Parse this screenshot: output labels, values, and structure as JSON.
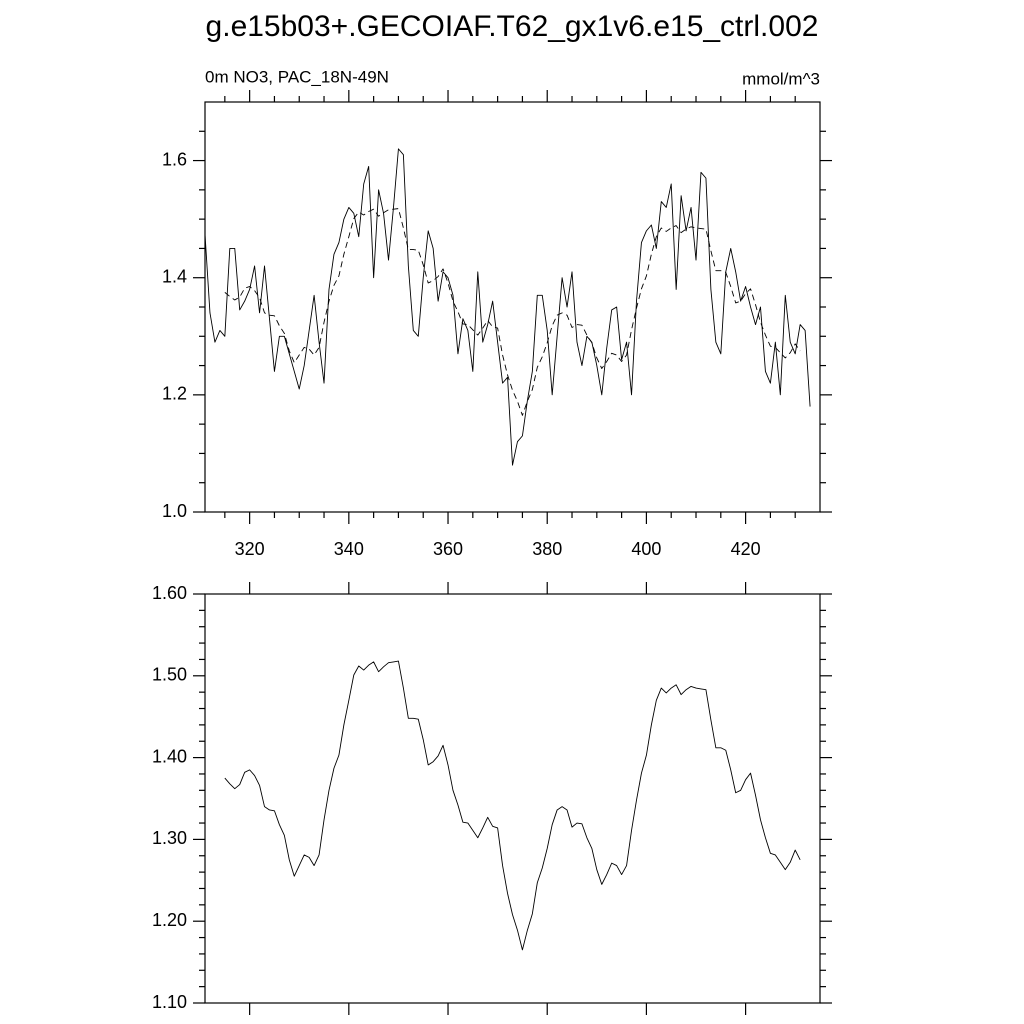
{
  "title": "g.e15b03+.GECOIAF.T62_gx1v6.e15_ctrl.002",
  "chart_data": [
    {
      "type": "line",
      "subtitle": "0m NO3, PAC_18N-49N",
      "units": "mmol/m^3",
      "xlim": [
        311,
        435
      ],
      "xticks": [
        320,
        340,
        360,
        380,
        400,
        420
      ],
      "xtick_labels": true,
      "xminorticks": [
        315,
        325,
        330,
        335,
        345,
        350,
        355,
        365,
        370,
        375,
        385,
        390,
        395,
        405,
        410,
        415,
        425,
        430
      ],
      "ylim": [
        1.0,
        1.7
      ],
      "yticks": [
        {
          "value": 1.0,
          "label": "1.0"
        },
        1.2,
        1.4,
        1.6
      ],
      "yminorticks": [
        1.05,
        1.1,
        1.15,
        1.25,
        1.3,
        1.35,
        1.45,
        1.5,
        1.55,
        1.65
      ],
      "series": [
        {
          "color": "#000000",
          "dashed": false,
          "x": [
            311,
            312,
            313,
            314,
            315,
            316,
            317,
            318,
            319,
            320,
            321,
            322,
            323,
            324,
            325,
            326,
            327,
            328,
            329,
            330,
            331,
            332,
            333,
            334,
            335,
            336,
            337,
            338,
            339,
            340,
            341,
            342,
            343,
            344,
            345,
            346,
            347,
            348,
            349,
            350,
            351,
            352,
            353,
            354,
            355,
            356,
            357,
            358,
            359,
            360,
            361,
            362,
            363,
            364,
            365,
            366,
            367,
            368,
            369,
            370,
            371,
            372,
            373,
            374,
            375,
            376,
            377,
            378,
            379,
            380,
            381,
            382,
            383,
            384,
            385,
            386,
            387,
            388,
            389,
            390,
            391,
            392,
            393,
            394,
            395,
            396,
            397,
            398,
            399,
            400,
            401,
            402,
            403,
            404,
            405,
            406,
            407,
            408,
            409,
            410,
            411,
            412,
            413,
            414,
            415,
            416,
            417,
            418,
            419,
            420,
            421,
            422,
            423,
            424,
            425,
            426,
            427,
            428,
            429,
            430,
            431,
            432,
            433
          ],
          "values": [
            1.474,
            1.34,
            1.29,
            1.31,
            1.3,
            1.45,
            1.45,
            1.345,
            1.36,
            1.38,
            1.42,
            1.34,
            1.42,
            1.33,
            1.24,
            1.3,
            1.3,
            1.27,
            1.24,
            1.21,
            1.25,
            1.31,
            1.37,
            1.29,
            1.22,
            1.38,
            1.44,
            1.46,
            1.5,
            1.52,
            1.51,
            1.47,
            1.56,
            1.59,
            1.4,
            1.55,
            1.51,
            1.43,
            1.52,
            1.62,
            1.61,
            1.42,
            1.31,
            1.3,
            1.4,
            1.48,
            1.45,
            1.36,
            1.41,
            1.4,
            1.37,
            1.27,
            1.33,
            1.31,
            1.24,
            1.41,
            1.29,
            1.32,
            1.36,
            1.29,
            1.22,
            1.23,
            1.08,
            1.12,
            1.13,
            1.19,
            1.24,
            1.37,
            1.37,
            1.31,
            1.2,
            1.3,
            1.4,
            1.35,
            1.41,
            1.29,
            1.25,
            1.3,
            1.29,
            1.25,
            1.2,
            1.28,
            1.345,
            1.35,
            1.26,
            1.29,
            1.2,
            1.36,
            1.46,
            1.48,
            1.49,
            1.45,
            1.53,
            1.52,
            1.56,
            1.38,
            1.54,
            1.48,
            1.52,
            1.43,
            1.58,
            1.57,
            1.38,
            1.29,
            1.27,
            1.41,
            1.45,
            1.41,
            1.36,
            1.385,
            1.35,
            1.32,
            1.35,
            1.24,
            1.22,
            1.29,
            1.2,
            1.37,
            1.29,
            1.27,
            1.32,
            1.31,
            1.18
          ]
        },
        {
          "color": "#000000",
          "dashed": true,
          "x": [
            315,
            316,
            317,
            318,
            319,
            320,
            321,
            322,
            323,
            324,
            325,
            326,
            327,
            328,
            329,
            330,
            331,
            332,
            333,
            334,
            335,
            336,
            337,
            338,
            339,
            340,
            341,
            342,
            343,
            344,
            345,
            346,
            347,
            348,
            349,
            350,
            351,
            352,
            353,
            354,
            355,
            356,
            357,
            358,
            359,
            360,
            361,
            362,
            363,
            364,
            365,
            366,
            367,
            368,
            369,
            370,
            371,
            372,
            373,
            374,
            375,
            376,
            377,
            378,
            379,
            380,
            381,
            382,
            383,
            384,
            385,
            386,
            387,
            388,
            389,
            390,
            391,
            392,
            393,
            394,
            395,
            396,
            397,
            398,
            399,
            400,
            401,
            402,
            403,
            404,
            405,
            406,
            407,
            408,
            409,
            410,
            411,
            412,
            413,
            414,
            415,
            416,
            417,
            418,
            419,
            420,
            421,
            422,
            423,
            424,
            425,
            426,
            427,
            428,
            429,
            430,
            431
          ],
          "values": [
            1.375,
            1.368,
            1.362,
            1.367,
            1.382,
            1.385,
            1.378,
            1.366,
            1.34,
            1.336,
            1.335,
            1.318,
            1.305,
            1.275,
            1.255,
            1.268,
            1.281,
            1.278,
            1.268,
            1.281,
            1.324,
            1.36,
            1.387,
            1.403,
            1.44,
            1.47,
            1.501,
            1.512,
            1.507,
            1.513,
            1.517,
            1.505,
            1.511,
            1.516,
            1.517,
            1.518,
            1.485,
            1.448,
            1.448,
            1.447,
            1.422,
            1.391,
            1.395,
            1.402,
            1.415,
            1.391,
            1.36,
            1.342,
            1.321,
            1.32,
            1.311,
            1.302,
            1.314,
            1.327,
            1.316,
            1.314,
            1.268,
            1.234,
            1.208,
            1.189,
            1.165,
            1.189,
            1.209,
            1.247,
            1.265,
            1.289,
            1.318,
            1.336,
            1.34,
            1.336,
            1.315,
            1.32,
            1.319,
            1.302,
            1.289,
            1.263,
            1.245,
            1.257,
            1.271,
            1.268,
            1.257,
            1.268,
            1.311,
            1.348,
            1.381,
            1.403,
            1.44,
            1.47,
            1.485,
            1.479,
            1.485,
            1.489,
            1.477,
            1.483,
            1.487,
            1.485,
            1.484,
            1.483,
            1.446,
            1.412,
            1.412,
            1.409,
            1.385,
            1.357,
            1.36,
            1.373,
            1.381,
            1.354,
            1.324,
            1.302,
            1.283,
            1.281,
            1.272,
            1.263,
            1.272,
            1.287,
            1.275
          ]
        }
      ]
    },
    {
      "type": "line",
      "xlim": [
        311,
        435
      ],
      "xticks": [
        320,
        340,
        360,
        380,
        400,
        420
      ],
      "xtick_labels": false,
      "ylim": [
        1.1,
        1.6
      ],
      "yticks": [
        {
          "value": 1.1,
          "label": "1.10"
        },
        {
          "value": 1.2,
          "label": "1.20"
        },
        {
          "value": 1.3,
          "label": "1.30"
        },
        {
          "value": 1.4,
          "label": "1.40"
        },
        {
          "value": 1.5,
          "label": "1.50"
        },
        {
          "value": 1.6,
          "label": "1.60"
        }
      ],
      "yminorticks": [
        1.12,
        1.14,
        1.16,
        1.18,
        1.22,
        1.24,
        1.26,
        1.28,
        1.32,
        1.34,
        1.36,
        1.38,
        1.42,
        1.44,
        1.46,
        1.48,
        1.52,
        1.54,
        1.56,
        1.58
      ],
      "series": [
        {
          "color": "#000000",
          "dashed": false,
          "x": [
            315,
            316,
            317,
            318,
            319,
            320,
            321,
            322,
            323,
            324,
            325,
            326,
            327,
            328,
            329,
            330,
            331,
            332,
            333,
            334,
            335,
            336,
            337,
            338,
            339,
            340,
            341,
            342,
            343,
            344,
            345,
            346,
            347,
            348,
            349,
            350,
            351,
            352,
            353,
            354,
            355,
            356,
            357,
            358,
            359,
            360,
            361,
            362,
            363,
            364,
            365,
            366,
            367,
            368,
            369,
            370,
            371,
            372,
            373,
            374,
            375,
            376,
            377,
            378,
            379,
            380,
            381,
            382,
            383,
            384,
            385,
            386,
            387,
            388,
            389,
            390,
            391,
            392,
            393,
            394,
            395,
            396,
            397,
            398,
            399,
            400,
            401,
            402,
            403,
            404,
            405,
            406,
            407,
            408,
            409,
            410,
            411,
            412,
            413,
            414,
            415,
            416,
            417,
            418,
            419,
            420,
            421,
            422,
            423,
            424,
            425,
            426,
            427,
            428,
            429,
            430,
            431
          ],
          "values": [
            1.375,
            1.368,
            1.362,
            1.367,
            1.382,
            1.385,
            1.378,
            1.366,
            1.34,
            1.336,
            1.335,
            1.318,
            1.305,
            1.275,
            1.255,
            1.268,
            1.281,
            1.278,
            1.268,
            1.281,
            1.324,
            1.36,
            1.387,
            1.403,
            1.44,
            1.47,
            1.501,
            1.512,
            1.507,
            1.513,
            1.517,
            1.505,
            1.511,
            1.516,
            1.517,
            1.518,
            1.485,
            1.448,
            1.448,
            1.447,
            1.422,
            1.391,
            1.395,
            1.402,
            1.415,
            1.391,
            1.36,
            1.342,
            1.321,
            1.32,
            1.311,
            1.302,
            1.314,
            1.327,
            1.316,
            1.314,
            1.268,
            1.234,
            1.208,
            1.189,
            1.165,
            1.189,
            1.209,
            1.247,
            1.265,
            1.289,
            1.318,
            1.336,
            1.34,
            1.336,
            1.315,
            1.32,
            1.319,
            1.302,
            1.289,
            1.263,
            1.245,
            1.257,
            1.271,
            1.268,
            1.257,
            1.268,
            1.311,
            1.348,
            1.381,
            1.403,
            1.44,
            1.47,
            1.485,
            1.479,
            1.485,
            1.489,
            1.477,
            1.483,
            1.487,
            1.485,
            1.484,
            1.483,
            1.446,
            1.412,
            1.412,
            1.409,
            1.385,
            1.357,
            1.36,
            1.373,
            1.381,
            1.354,
            1.324,
            1.302,
            1.283,
            1.281,
            1.272,
            1.263,
            1.272,
            1.287,
            1.275
          ]
        }
      ]
    }
  ]
}
